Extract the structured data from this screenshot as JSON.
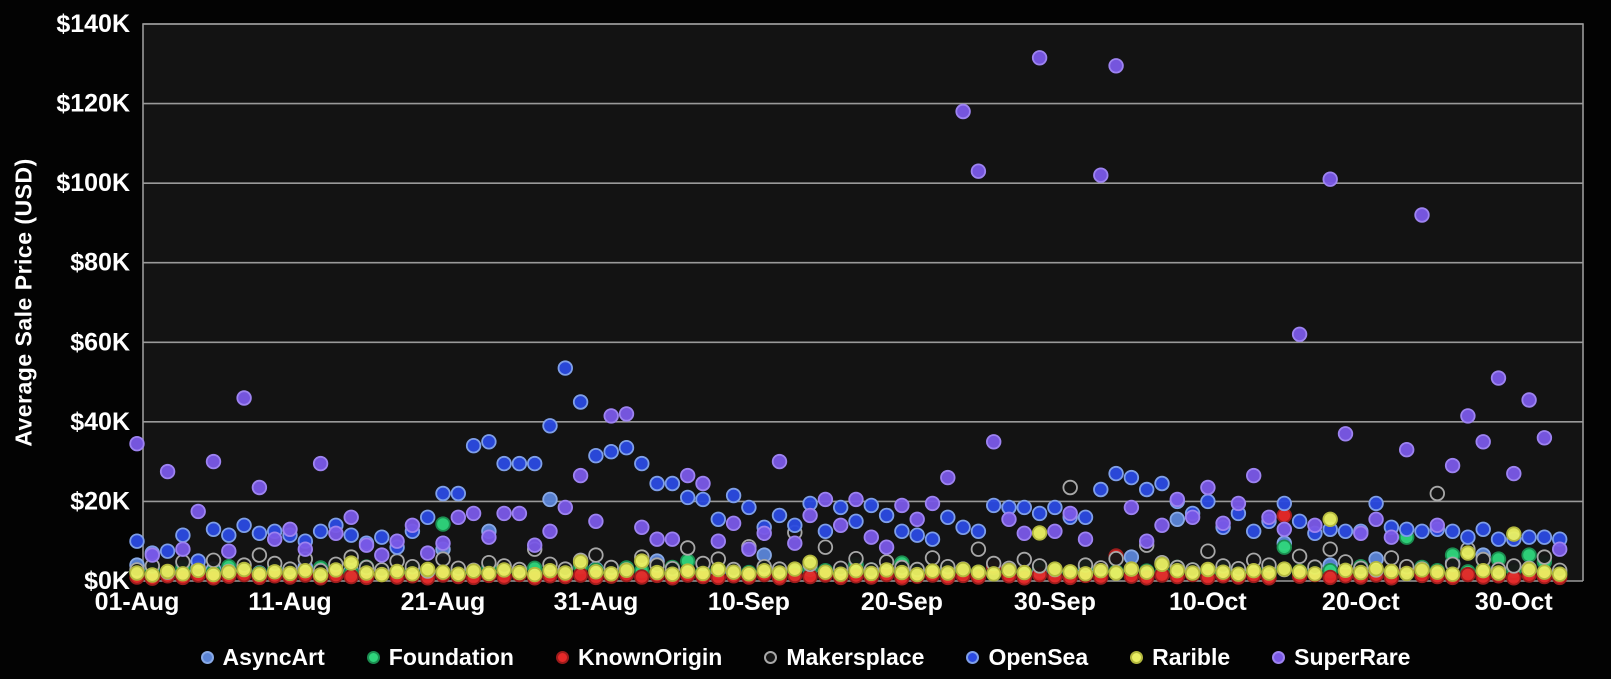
{
  "chart_data": {
    "type": "scatter",
    "title": "",
    "xlabel": "",
    "ylabel": "Average Sale Price (USD)",
    "unit": "USD thousands",
    "ylim": [
      0,
      140
    ],
    "y_ticks": [
      {
        "value": 0,
        "label": "$0K"
      },
      {
        "value": 20,
        "label": "$20K"
      },
      {
        "value": 40,
        "label": "$40K"
      },
      {
        "value": 60,
        "label": "$60K"
      },
      {
        "value": 80,
        "label": "$80K"
      },
      {
        "value": 100,
        "label": "$100K"
      },
      {
        "value": 120,
        "label": "$120K"
      },
      {
        "value": 140,
        "label": "$140K"
      }
    ],
    "x_domain_days": [
      0,
      94
    ],
    "x_ticks": [
      {
        "day": 0,
        "label": "01-Aug"
      },
      {
        "day": 10,
        "label": "11-Aug"
      },
      {
        "day": 20,
        "label": "21-Aug"
      },
      {
        "day": 30,
        "label": "31-Aug"
      },
      {
        "day": 40,
        "label": "10-Sep"
      },
      {
        "day": 50,
        "label": "20-Sep"
      },
      {
        "day": 60,
        "label": "30-Sep"
      },
      {
        "day": 70,
        "label": "10-Oct"
      },
      {
        "day": 80,
        "label": "20-Oct"
      },
      {
        "day": 90,
        "label": "30-Oct"
      }
    ],
    "grid": true,
    "legend_position": "bottom",
    "colors": {
      "grid": "#9a9a9a",
      "axis_text": "#ffffff",
      "plot_background": "#131313",
      "page_background": "#030303"
    },
    "series": [
      {
        "name": "AsyncArt",
        "color": "#5b84d6",
        "stroke": "#88a9e6",
        "points": [
          [
            0,
            4
          ],
          [
            3,
            2.5
          ],
          [
            5,
            3
          ],
          [
            8,
            2
          ],
          [
            11,
            3.5
          ],
          [
            14,
            2.5
          ],
          [
            17,
            2
          ],
          [
            20,
            8
          ],
          [
            23,
            12.5
          ],
          [
            27,
            20.5
          ],
          [
            30,
            3
          ],
          [
            34,
            5
          ],
          [
            38,
            2.5
          ],
          [
            41,
            6.5
          ],
          [
            44,
            3
          ],
          [
            47,
            4
          ],
          [
            50,
            2.5
          ],
          [
            53,
            3
          ],
          [
            56,
            3.5
          ],
          [
            59,
            2.5
          ],
          [
            62,
            3
          ],
          [
            65,
            6
          ],
          [
            68,
            15.5
          ],
          [
            71,
            3
          ],
          [
            75,
            9.5
          ],
          [
            78,
            4
          ],
          [
            81,
            5.5
          ],
          [
            83,
            3
          ],
          [
            86,
            4.5
          ],
          [
            88,
            6.5
          ],
          [
            90,
            3.5
          ],
          [
            91,
            2.5
          ]
        ]
      },
      {
        "name": "Foundation",
        "color": "#2fd57c",
        "stroke": "#1c8e51",
        "values": [
          2.4,
          3.0,
          2.0,
          3.4,
          2.6,
          2.2,
          3.6,
          2.7,
          1.9,
          3.1,
          2.5,
          2.1,
          3.3,
          2.6,
          2.0,
          3.5,
          2.8,
          2.2,
          3.0,
          2.4,
          14.3,
          2.6,
          2.1,
          3.4,
          2.7,
          2.0,
          3.2,
          2.5,
          2.2,
          3.6,
          2.8,
          2.1,
          3.3,
          2.6,
          2.0,
          3.4,
          5.0,
          2.3,
          3.0,
          2.5,
          2.1,
          3.5,
          2.7,
          2.0,
          3.2,
          2.6,
          2.2,
          4.2,
          2.8,
          2.1,
          4.5,
          2.6,
          2.0,
          3.4,
          2.7,
          2.2,
          3.5,
          2.8,
          2.0,
          3.3,
          2.6,
          2.1,
          3.6,
          2.7,
          2.3,
          3.0,
          2.5,
          2.0,
          3.4,
          2.8,
          2.2,
          3.5,
          2.6,
          2.1,
          3.3,
          8.5,
          2.4,
          3.0,
          2.6,
          2.2,
          3.6,
          2.8,
          2.1,
          11.0,
          3.4,
          2.6,
          6.5,
          2.3,
          3.0,
          5.5,
          2.7,
          6.5,
          4.8,
          2.2
        ]
      },
      {
        "name": "KnownOrigin",
        "color": "#e62929",
        "stroke": "#9e1c1c",
        "values": [
          1.0,
          0.7,
          1.3,
          0.9,
          1.5,
          0.8,
          1.2,
          1.6,
          0.9,
          1.3,
          1.0,
          1.5,
          0.8,
          1.4,
          1.1,
          0.9,
          1.6,
          1.0,
          1.3,
          0.8,
          1.5,
          1.1,
          0.9,
          1.4,
          1.0,
          1.6,
          0.8,
          1.3,
          1.1,
          1.5,
          0.9,
          1.2,
          1.6,
          1.0,
          1.4,
          0.8,
          1.5,
          1.1,
          0.9,
          1.3,
          1.0,
          1.6,
          0.8,
          1.4,
          1.1,
          1.5,
          0.9,
          1.3,
          1.0,
          1.6,
          0.8,
          1.2,
          1.5,
          0.9,
          1.4,
          1.0,
          3.5,
          1.3,
          0.8,
          1.6,
          1.1,
          0.9,
          1.4,
          1.0,
          6.3,
          1.2,
          0.8,
          1.5,
          1.1,
          1.6,
          0.9,
          1.3,
          1.0,
          1.4,
          0.8,
          16.5,
          1.2,
          1.6,
          0.9,
          1.3,
          1.0,
          1.5,
          0.8,
          3.0,
          1.4,
          1.1,
          0.9,
          1.6,
          1.0,
          1.3,
          0.8,
          1.5,
          1.1,
          0.9
        ]
      },
      {
        "name": "Makersplace",
        "color": "#161616",
        "stroke": "#a8a8a8",
        "values": [
          2.8,
          3.8,
          2.2,
          4.8,
          3.2,
          5.2,
          2.4,
          4.0,
          6.5,
          4.4,
          3.0,
          5.5,
          2.6,
          4.2,
          6.0,
          3.4,
          2.8,
          5.0,
          3.6,
          2.5,
          5.5,
          3.2,
          2.7,
          4.6,
          3.8,
          2.9,
          8.0,
          4.2,
          3.0,
          5.2,
          6.5,
          3.4,
          2.8,
          6.0,
          4.0,
          3.1,
          8.3,
          4.4,
          5.5,
          2.9,
          8.6,
          3.6,
          3.0,
          12.2,
          4.2,
          8.5,
          3.2,
          5.6,
          2.8,
          4.8,
          3.4,
          2.9,
          5.8,
          3.6,
          3.0,
          8.0,
          4.4,
          3.2,
          5.4,
          3.8,
          2.9,
          23.5,
          4.0,
          3.3,
          5.6,
          3.0,
          9.0,
          4.6,
          3.4,
          2.8,
          7.5,
          3.8,
          3.1,
          5.2,
          4.0,
          2.9,
          6.2,
          3.5,
          8.0,
          4.8,
          3.2,
          2.8,
          5.8,
          3.6,
          3.0,
          22.0,
          4.2,
          8.0,
          5.4,
          2.9,
          3.8,
          3.2,
          6.0,
          2.7
        ]
      },
      {
        "name": "OpenSea",
        "color": "#2b4ae0",
        "stroke": "#7f9fe8",
        "values": [
          10,
          7,
          7.5,
          11.5,
          5,
          13,
          11.5,
          14,
          12,
          12.5,
          11.5,
          10,
          12.5,
          14,
          11.5,
          9.5,
          11,
          8.5,
          12.5,
          16,
          22,
          22,
          34,
          35,
          29.5,
          29.5,
          29.5,
          39,
          53.5,
          45,
          31.5,
          32.5,
          33.5,
          29.5,
          24.5,
          24.5,
          21,
          20.5,
          15.5,
          21.5,
          18.5,
          13.5,
          16.5,
          14,
          19.5,
          12.5,
          18.5,
          15,
          19,
          16.5,
          12.5,
          11.5,
          10.5,
          16,
          13.5,
          12.5,
          19,
          18.5,
          18.5,
          17,
          18.5,
          16,
          16,
          23,
          27,
          26,
          23,
          24.5,
          20,
          17,
          20,
          13.5,
          17,
          12.5,
          15,
          19.5,
          15,
          12,
          13,
          12.5,
          12.5,
          19.5,
          13.5,
          13,
          12.5,
          13,
          12.5,
          11,
          13,
          10.5,
          10.5,
          11,
          11,
          10.5
        ]
      },
      {
        "name": "Rarible",
        "color": "#e9ef63",
        "stroke": "#b3b83e",
        "values": [
          2.0,
          1.5,
          2.4,
          1.8,
          2.7,
          1.6,
          2.2,
          2.9,
          1.7,
          2.3,
          1.9,
          2.6,
          1.5,
          2.8,
          4.5,
          2.0,
          1.6,
          2.4,
          1.8,
          2.9,
          2.2,
          1.7,
          2.5,
          1.9,
          2.8,
          2.1,
          1.6,
          2.6,
          2.0,
          4.8,
          2.3,
          1.8,
          2.7,
          5.0,
          2.1,
          1.7,
          2.5,
          1.9,
          2.9,
          2.2,
          1.8,
          2.6,
          2.0,
          3.0,
          4.7,
          2.2,
          1.7,
          2.6,
          1.9,
          2.8,
          2.1,
          1.6,
          2.5,
          2.0,
          2.9,
          2.2,
          1.8,
          2.7,
          2.1,
          12.1,
          3.0,
          2.3,
          1.8,
          2.6,
          2.0,
          3.0,
          2.2,
          4.2,
          2.6,
          2.0,
          2.9,
          2.2,
          1.7,
          2.6,
          2.0,
          3.0,
          2.3,
          1.8,
          15.5,
          2.7,
          2.1,
          3.1,
          2.4,
          1.9,
          2.8,
          2.2,
          1.7,
          7.0,
          2.6,
          2.0,
          11.8,
          2.9,
          2.2,
          1.7
        ]
      },
      {
        "name": "SuperRare",
        "color": "#7a58e6",
        "stroke": "#9d83f0",
        "values": [
          34.5,
          6.5,
          27.5,
          8,
          17.5,
          30,
          7.5,
          46,
          23.5,
          10.5,
          13,
          8,
          29.5,
          12,
          16,
          9,
          6.5,
          10,
          14,
          7,
          9.5,
          16,
          17,
          11,
          17,
          17,
          9,
          12.5,
          18.5,
          26.5,
          15,
          41.5,
          42,
          13.5,
          10.5,
          10.5,
          26.5,
          24.5,
          10,
          14.5,
          8,
          12,
          30,
          9.5,
          16.5,
          20.5,
          14,
          20.5,
          11,
          8.5,
          19,
          15.5,
          19.5,
          26,
          118,
          103,
          35,
          15.5,
          12,
          131.5,
          12.5,
          17,
          10.5,
          102,
          129.5,
          18.5,
          10,
          14,
          20.5,
          16,
          23.5,
          14.5,
          19.5,
          26.5,
          16,
          13,
          62,
          14,
          101,
          37,
          12,
          15.5,
          11,
          33,
          92,
          14,
          29,
          41.5,
          35,
          51,
          27,
          45.5,
          36,
          8
        ]
      }
    ]
  }
}
